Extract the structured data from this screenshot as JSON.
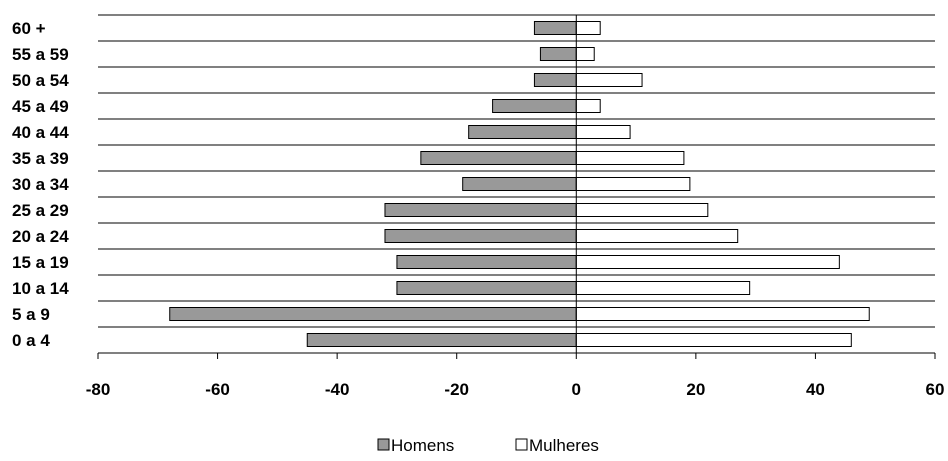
{
  "chart_data": {
    "type": "bar",
    "orientation": "horizontal",
    "categories": [
      "60 +",
      "55 a 59",
      "50 a 54",
      "45 a 49",
      "40 a 44",
      "35 a 39",
      "30 a 34",
      "25 a 29",
      "20 a 24",
      "15 a 19",
      "10 a 14",
      "5 a 9",
      "0 a 4"
    ],
    "series": [
      {
        "name": "Homens",
        "color": "#999999",
        "values": [
          -7,
          -6,
          -7,
          -14,
          -18,
          -26,
          -19,
          -32,
          -32,
          -30,
          -30,
          -68,
          -45
        ]
      },
      {
        "name": "Mulheres",
        "color": "#ffffff",
        "values": [
          4,
          3,
          11,
          4,
          9,
          18,
          19,
          22,
          27,
          44,
          29,
          49,
          46
        ]
      }
    ],
    "xlim": [
      -80,
      60
    ],
    "xticks": [
      -80,
      -60,
      -40,
      -20,
      0,
      20,
      40,
      60
    ],
    "xtick_labels": [
      "-80",
      "-60",
      "-40",
      "-20",
      "0",
      "20",
      "40",
      "60"
    ],
    "grid": "horizontal-lines",
    "legend": "bottom-center"
  }
}
